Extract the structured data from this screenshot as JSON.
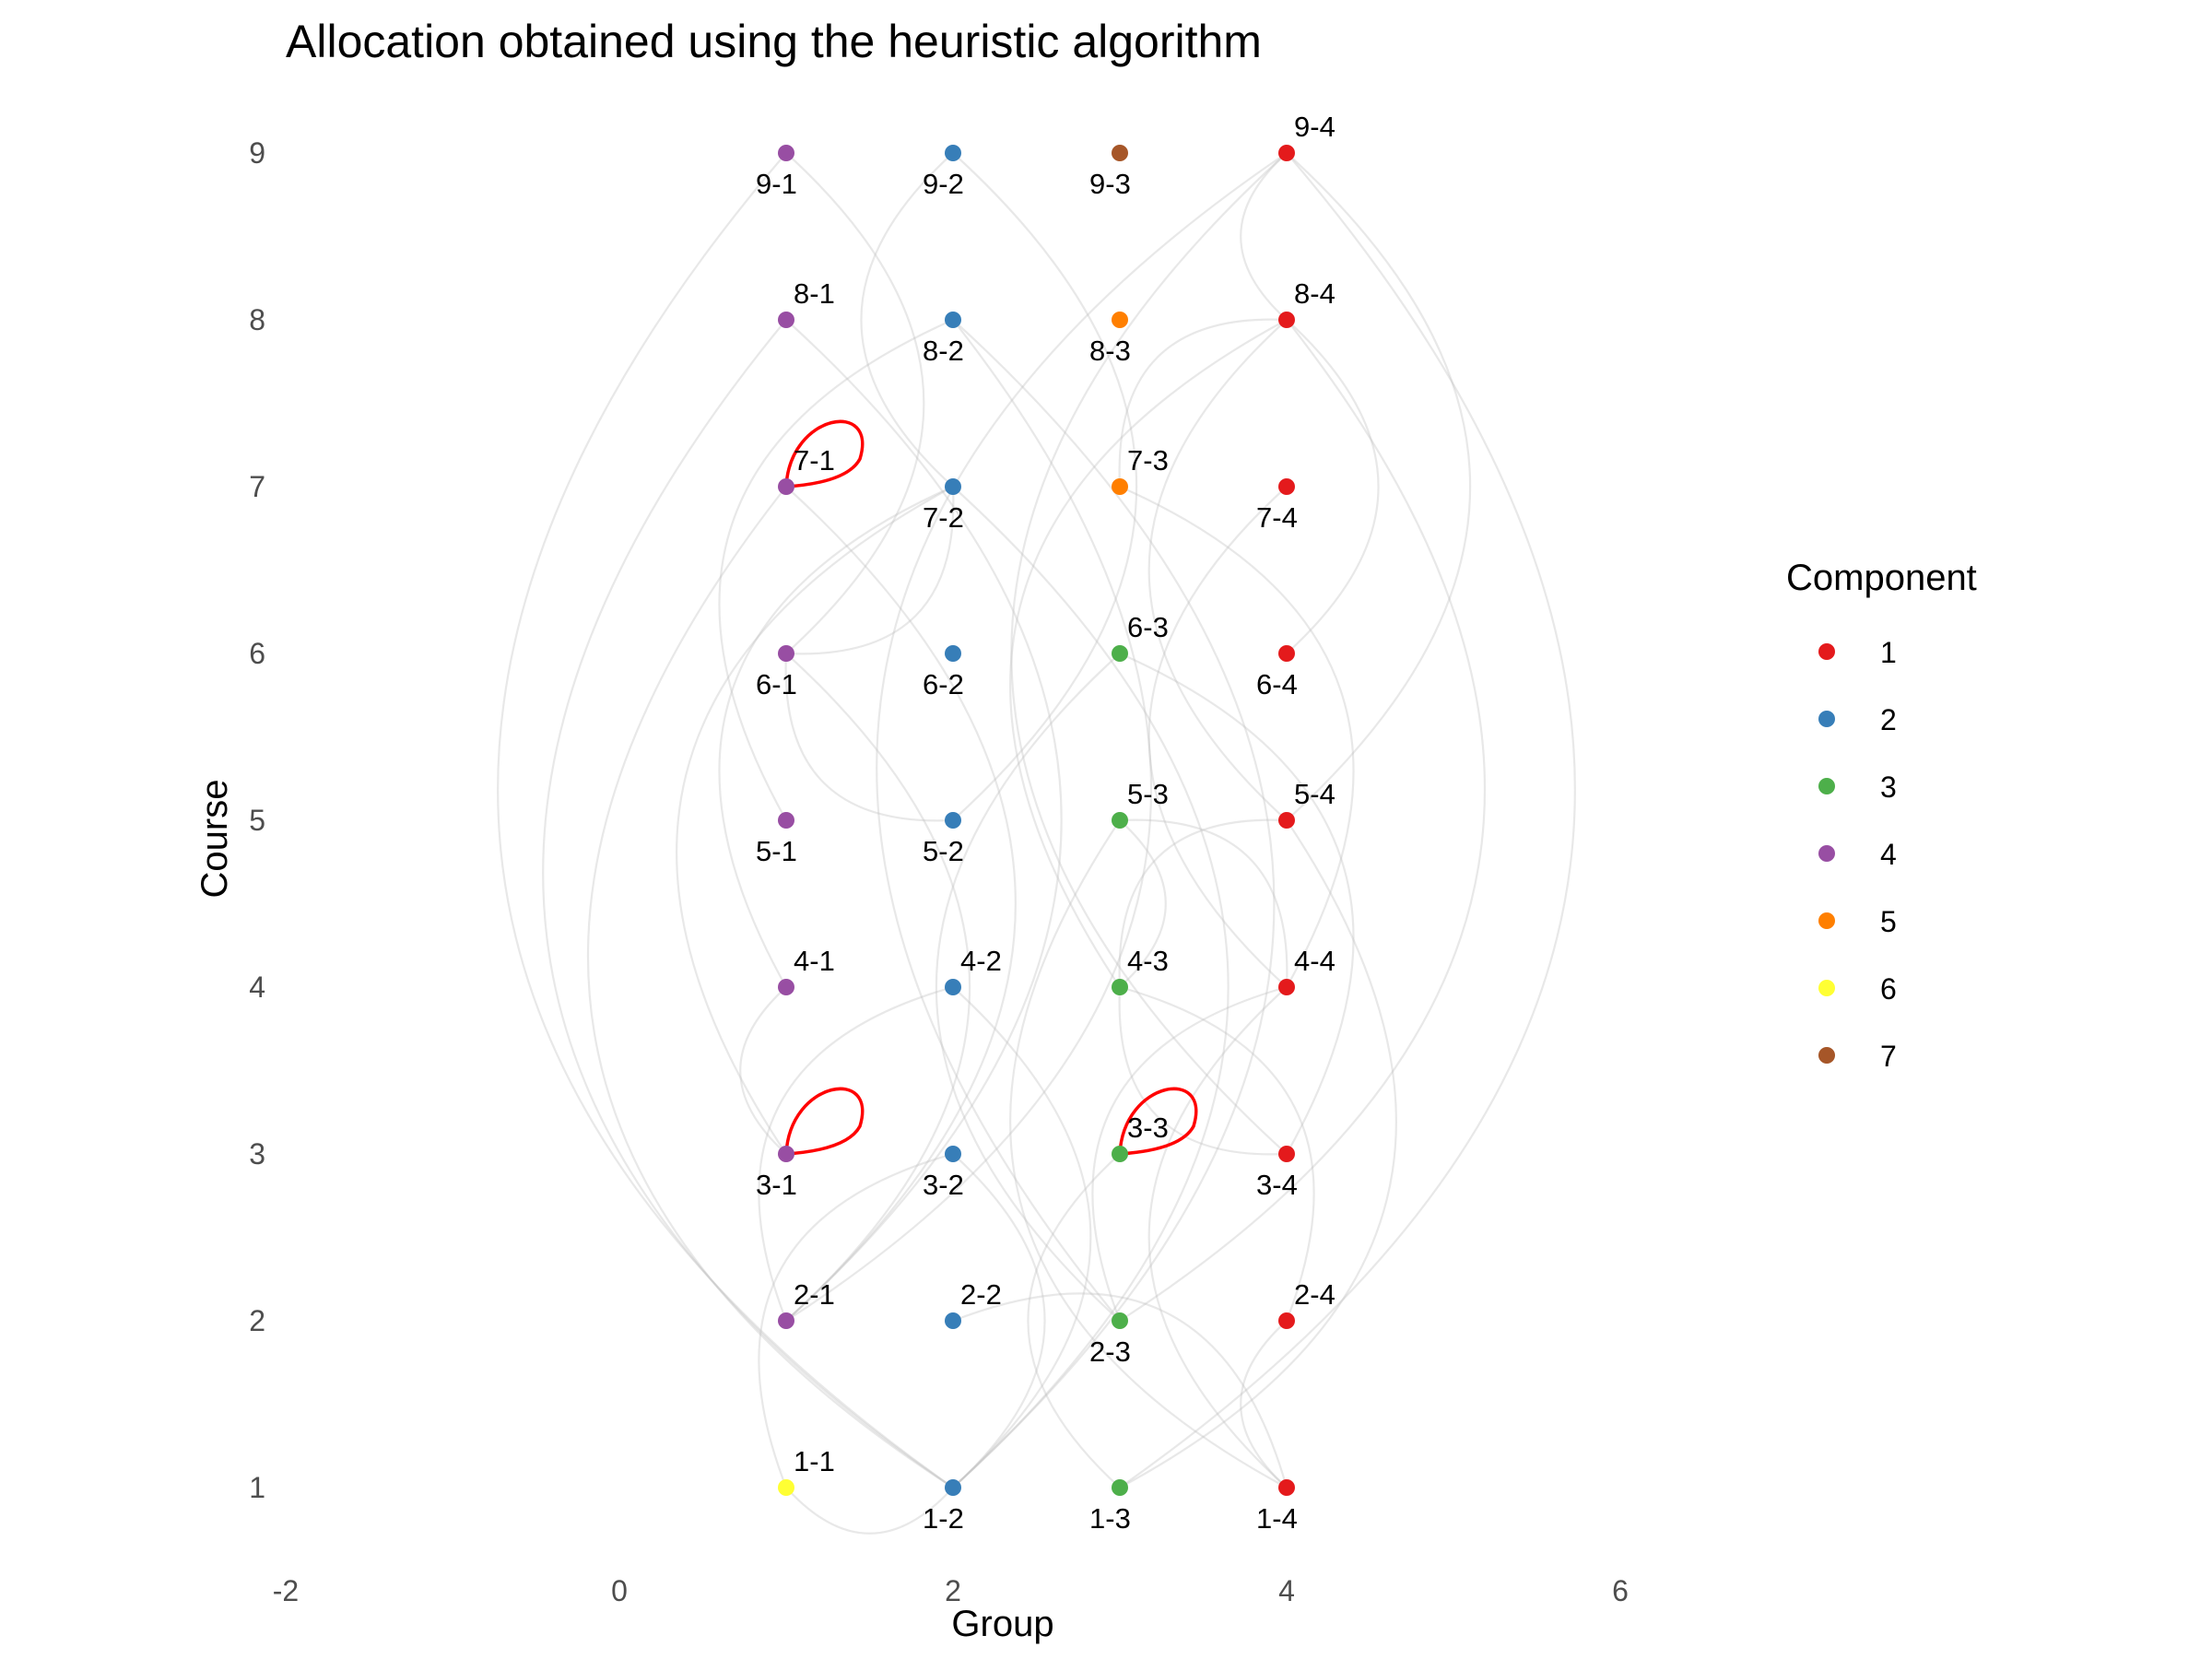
{
  "chart_data": {
    "type": "network",
    "title": "Allocation obtained using the heuristic algorithm",
    "xlabel": "Group",
    "ylabel": "Course",
    "xlim": [
      -2,
      7
    ],
    "ylim": [
      0.6,
      9.4
    ],
    "x_ticks": [
      -2,
      0,
      2,
      4,
      6
    ],
    "y_ticks": [
      1,
      2,
      3,
      4,
      5,
      6,
      7,
      8,
      9
    ],
    "grid": false,
    "legend": {
      "title": "Component",
      "position": "right",
      "entries": [
        {
          "label": "1",
          "color": "#E41A1C"
        },
        {
          "label": "2",
          "color": "#377EB8"
        },
        {
          "label": "3",
          "color": "#4DAF4A"
        },
        {
          "label": "4",
          "color": "#984EA3"
        },
        {
          "label": "5",
          "color": "#FF7F00"
        },
        {
          "label": "6",
          "color": "#FFFF33"
        },
        {
          "label": "7",
          "color": "#A65628"
        }
      ]
    },
    "nodes": [
      {
        "label": "1-1",
        "x": 1,
        "y": 1,
        "component": 6,
        "label_pos": "above"
      },
      {
        "label": "1-2",
        "x": 2,
        "y": 1,
        "component": 2,
        "label_pos": "below"
      },
      {
        "label": "1-3",
        "x": 3,
        "y": 1,
        "component": 3,
        "label_pos": "below"
      },
      {
        "label": "1-4",
        "x": 4,
        "y": 1,
        "component": 1,
        "label_pos": "below"
      },
      {
        "label": "2-1",
        "x": 1,
        "y": 2,
        "component": 4,
        "label_pos": "above"
      },
      {
        "label": "2-2",
        "x": 2,
        "y": 2,
        "component": 2,
        "label_pos": "above"
      },
      {
        "label": "2-3",
        "x": 3,
        "y": 2,
        "component": 3,
        "label_pos": "below"
      },
      {
        "label": "2-4",
        "x": 4,
        "y": 2,
        "component": 1,
        "label_pos": "above"
      },
      {
        "label": "3-1",
        "x": 1,
        "y": 3,
        "component": 4,
        "label_pos": "below"
      },
      {
        "label": "3-2",
        "x": 2,
        "y": 3,
        "component": 2,
        "label_pos": "below"
      },
      {
        "label": "3-3",
        "x": 3,
        "y": 3,
        "component": 3,
        "label_pos": "above"
      },
      {
        "label": "3-4",
        "x": 4,
        "y": 3,
        "component": 1,
        "label_pos": "below"
      },
      {
        "label": "4-1",
        "x": 1,
        "y": 4,
        "component": 4,
        "label_pos": "above"
      },
      {
        "label": "4-2",
        "x": 2,
        "y": 4,
        "component": 2,
        "label_pos": "above"
      },
      {
        "label": "4-3",
        "x": 3,
        "y": 4,
        "component": 3,
        "label_pos": "above"
      },
      {
        "label": "4-4",
        "x": 4,
        "y": 4,
        "component": 1,
        "label_pos": "above"
      },
      {
        "label": "5-1",
        "x": 1,
        "y": 5,
        "component": 4,
        "label_pos": "below"
      },
      {
        "label": "5-2",
        "x": 2,
        "y": 5,
        "component": 2,
        "label_pos": "below"
      },
      {
        "label": "5-3",
        "x": 3,
        "y": 5,
        "component": 3,
        "label_pos": "above"
      },
      {
        "label": "5-4",
        "x": 4,
        "y": 5,
        "component": 1,
        "label_pos": "above"
      },
      {
        "label": "6-1",
        "x": 1,
        "y": 6,
        "component": 4,
        "label_pos": "below"
      },
      {
        "label": "6-2",
        "x": 2,
        "y": 6,
        "component": 2,
        "label_pos": "below"
      },
      {
        "label": "6-3",
        "x": 3,
        "y": 6,
        "component": 3,
        "label_pos": "above"
      },
      {
        "label": "6-4",
        "x": 4,
        "y": 6,
        "component": 1,
        "label_pos": "below"
      },
      {
        "label": "7-1",
        "x": 1,
        "y": 7,
        "component": 4,
        "label_pos": "above"
      },
      {
        "label": "7-2",
        "x": 2,
        "y": 7,
        "component": 2,
        "label_pos": "below"
      },
      {
        "label": "7-3",
        "x": 3,
        "y": 7,
        "component": 5,
        "label_pos": "above"
      },
      {
        "label": "7-4",
        "x": 4,
        "y": 7,
        "component": 1,
        "label_pos": "below"
      },
      {
        "label": "8-1",
        "x": 1,
        "y": 8,
        "component": 4,
        "label_pos": "above"
      },
      {
        "label": "8-2",
        "x": 2,
        "y": 8,
        "component": 2,
        "label_pos": "below"
      },
      {
        "label": "8-3",
        "x": 3,
        "y": 8,
        "component": 5,
        "label_pos": "below"
      },
      {
        "label": "8-4",
        "x": 4,
        "y": 8,
        "component": 1,
        "label_pos": "above"
      },
      {
        "label": "9-1",
        "x": 1,
        "y": 9,
        "component": 4,
        "label_pos": "below"
      },
      {
        "label": "9-2",
        "x": 2,
        "y": 9,
        "component": 2,
        "label_pos": "below"
      },
      {
        "label": "9-3",
        "x": 3,
        "y": 9,
        "component": 7,
        "label_pos": "below"
      },
      {
        "label": "9-4",
        "x": 4,
        "y": 9,
        "component": 1,
        "label_pos": "above"
      }
    ],
    "self_loops": [
      {
        "node": "7-1",
        "color": "#FF0000"
      },
      {
        "node": "3-1",
        "color": "#FF0000"
      },
      {
        "node": "3-3",
        "color": "#FF0000"
      }
    ],
    "edges": [
      [
        "9-1",
        "1-2"
      ],
      [
        "9-1",
        "6-1"
      ],
      [
        "9-2",
        "7-2"
      ],
      [
        "9-2",
        "5-2"
      ],
      [
        "9-4",
        "8-4"
      ],
      [
        "9-4",
        "5-4"
      ],
      [
        "9-4",
        "3-4"
      ],
      [
        "9-4",
        "1-3"
      ],
      [
        "9-4",
        "2-3"
      ],
      [
        "8-1",
        "2-1"
      ],
      [
        "8-1",
        "1-2"
      ],
      [
        "8-2",
        "2-1"
      ],
      [
        "8-2",
        "5-1"
      ],
      [
        "8-2",
        "1-2"
      ],
      [
        "8-4",
        "4-3"
      ],
      [
        "8-4",
        "2-3"
      ],
      [
        "8-4",
        "7-3"
      ],
      [
        "8-4",
        "6-4"
      ],
      [
        "8-4",
        "5-4"
      ],
      [
        "7-1",
        "2-1"
      ],
      [
        "7-1",
        "1-2"
      ],
      [
        "7-2",
        "1-2"
      ],
      [
        "7-2",
        "3-1"
      ],
      [
        "7-2",
        "6-1"
      ],
      [
        "7-2",
        "4-1"
      ],
      [
        "7-3",
        "4-4"
      ],
      [
        "7-4",
        "4-4"
      ],
      [
        "6-3",
        "3-4"
      ],
      [
        "6-3",
        "2-3"
      ],
      [
        "6-1",
        "2-1"
      ],
      [
        "6-1",
        "5-2"
      ],
      [
        "5-3",
        "4-3"
      ],
      [
        "5-3",
        "1-4"
      ],
      [
        "5-3",
        "4-4"
      ],
      [
        "5-4",
        "4-3"
      ],
      [
        "5-4",
        "1-3"
      ],
      [
        "4-2",
        "2-1"
      ],
      [
        "4-2",
        "1-2"
      ],
      [
        "4-3",
        "3-4"
      ],
      [
        "4-3",
        "2-4"
      ],
      [
        "4-4",
        "1-4"
      ],
      [
        "3-2",
        "1-2"
      ],
      [
        "3-2",
        "1-1"
      ],
      [
        "3-1",
        "4-1"
      ],
      [
        "3-3",
        "1-3"
      ],
      [
        "2-2",
        "1-4"
      ],
      [
        "2-4",
        "1-4"
      ],
      [
        "2-3",
        "4-4"
      ],
      [
        "1-1",
        "1-2"
      ]
    ]
  }
}
